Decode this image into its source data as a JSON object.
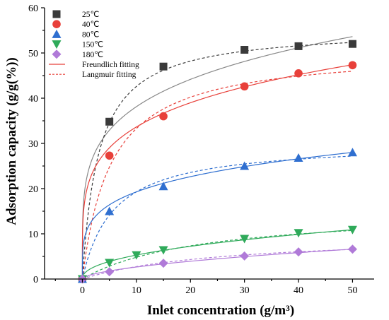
{
  "chart_data": {
    "type": "scatter",
    "xlabel": "Inlet concentration (g/m³)",
    "ylabel": "Adsorption capacity (g/g(%))",
    "xlim": [
      -7,
      54
    ],
    "ylim": [
      0,
      60
    ],
    "xticks": [
      0,
      10,
      20,
      30,
      40,
      50
    ],
    "yticks": [
      0,
      10,
      20,
      30,
      40,
      50,
      60
    ],
    "grid": false,
    "legend_position": "top-left",
    "series": [
      {
        "name": "25℃",
        "marker": "square",
        "color": "#3a3a3a",
        "x": [
          0,
          5,
          15,
          30,
          40,
          50
        ],
        "y": [
          0,
          34.8,
          47.0,
          50.7,
          51.5,
          52.0
        ],
        "freundlich": {
          "K": 23.4,
          "n": 0.212,
          "color": "#888888"
        },
        "langmuir": {
          "qm": 55.5,
          "KL": 0.33,
          "color": "#3a3a3a"
        }
      },
      {
        "name": "40℃",
        "marker": "circle",
        "color": "#e8403a",
        "x": [
          0,
          5,
          15,
          30,
          40,
          50
        ],
        "y": [
          0,
          27.3,
          36.0,
          42.6,
          45.5,
          47.3
        ],
        "freundlich": {
          "K": 20.6,
          "n": 0.213,
          "color": "#e8403a"
        },
        "langmuir": {
          "qm": 50.8,
          "KL": 0.19,
          "color": "#e8403a"
        }
      },
      {
        "name": "80℃",
        "marker": "triangle-up",
        "color": "#2f6fd0",
        "x": [
          0,
          5,
          15,
          30,
          40,
          50
        ],
        "y": [
          0,
          15.0,
          20.5,
          25.0,
          26.8,
          28.0
        ],
        "freundlich": {
          "K": 11.3,
          "n": 0.232,
          "color": "#2f6fd0"
        },
        "langmuir": {
          "qm": 30.3,
          "KL": 0.175,
          "color": "#2f6fd0"
        }
      },
      {
        "name": "150℃",
        "marker": "triangle-down",
        "color": "#2faa5a",
        "x": [
          0,
          5,
          10,
          15,
          30,
          40,
          50
        ],
        "y": [
          0,
          3.6,
          5.3,
          6.4,
          8.9,
          10.2,
          10.9
        ],
        "freundlich": {
          "K": 1.89,
          "n": 0.448,
          "color": "#2faa5a"
        },
        "langmuir": {
          "qm": 15.5,
          "KL": 0.045,
          "color": "#2faa5a"
        }
      },
      {
        "name": "180℃",
        "marker": "diamond",
        "color": "#b07ad8",
        "x": [
          0,
          5,
          15,
          30,
          40,
          50
        ],
        "y": [
          0,
          1.6,
          3.5,
          5.1,
          6.0,
          6.6
        ],
        "freundlich": {
          "K": 0.72,
          "n": 0.567,
          "color": "#b07ad8"
        },
        "langmuir": {
          "qm": 10.0,
          "KL": 0.038,
          "color": "#b07ad8"
        }
      }
    ],
    "fit_legend": [
      {
        "name": "Freundlich fitting",
        "style": "solid",
        "color": "#e8403a"
      },
      {
        "name": "Langmuir fitting",
        "style": "dashed",
        "color": "#e8403a"
      }
    ]
  }
}
